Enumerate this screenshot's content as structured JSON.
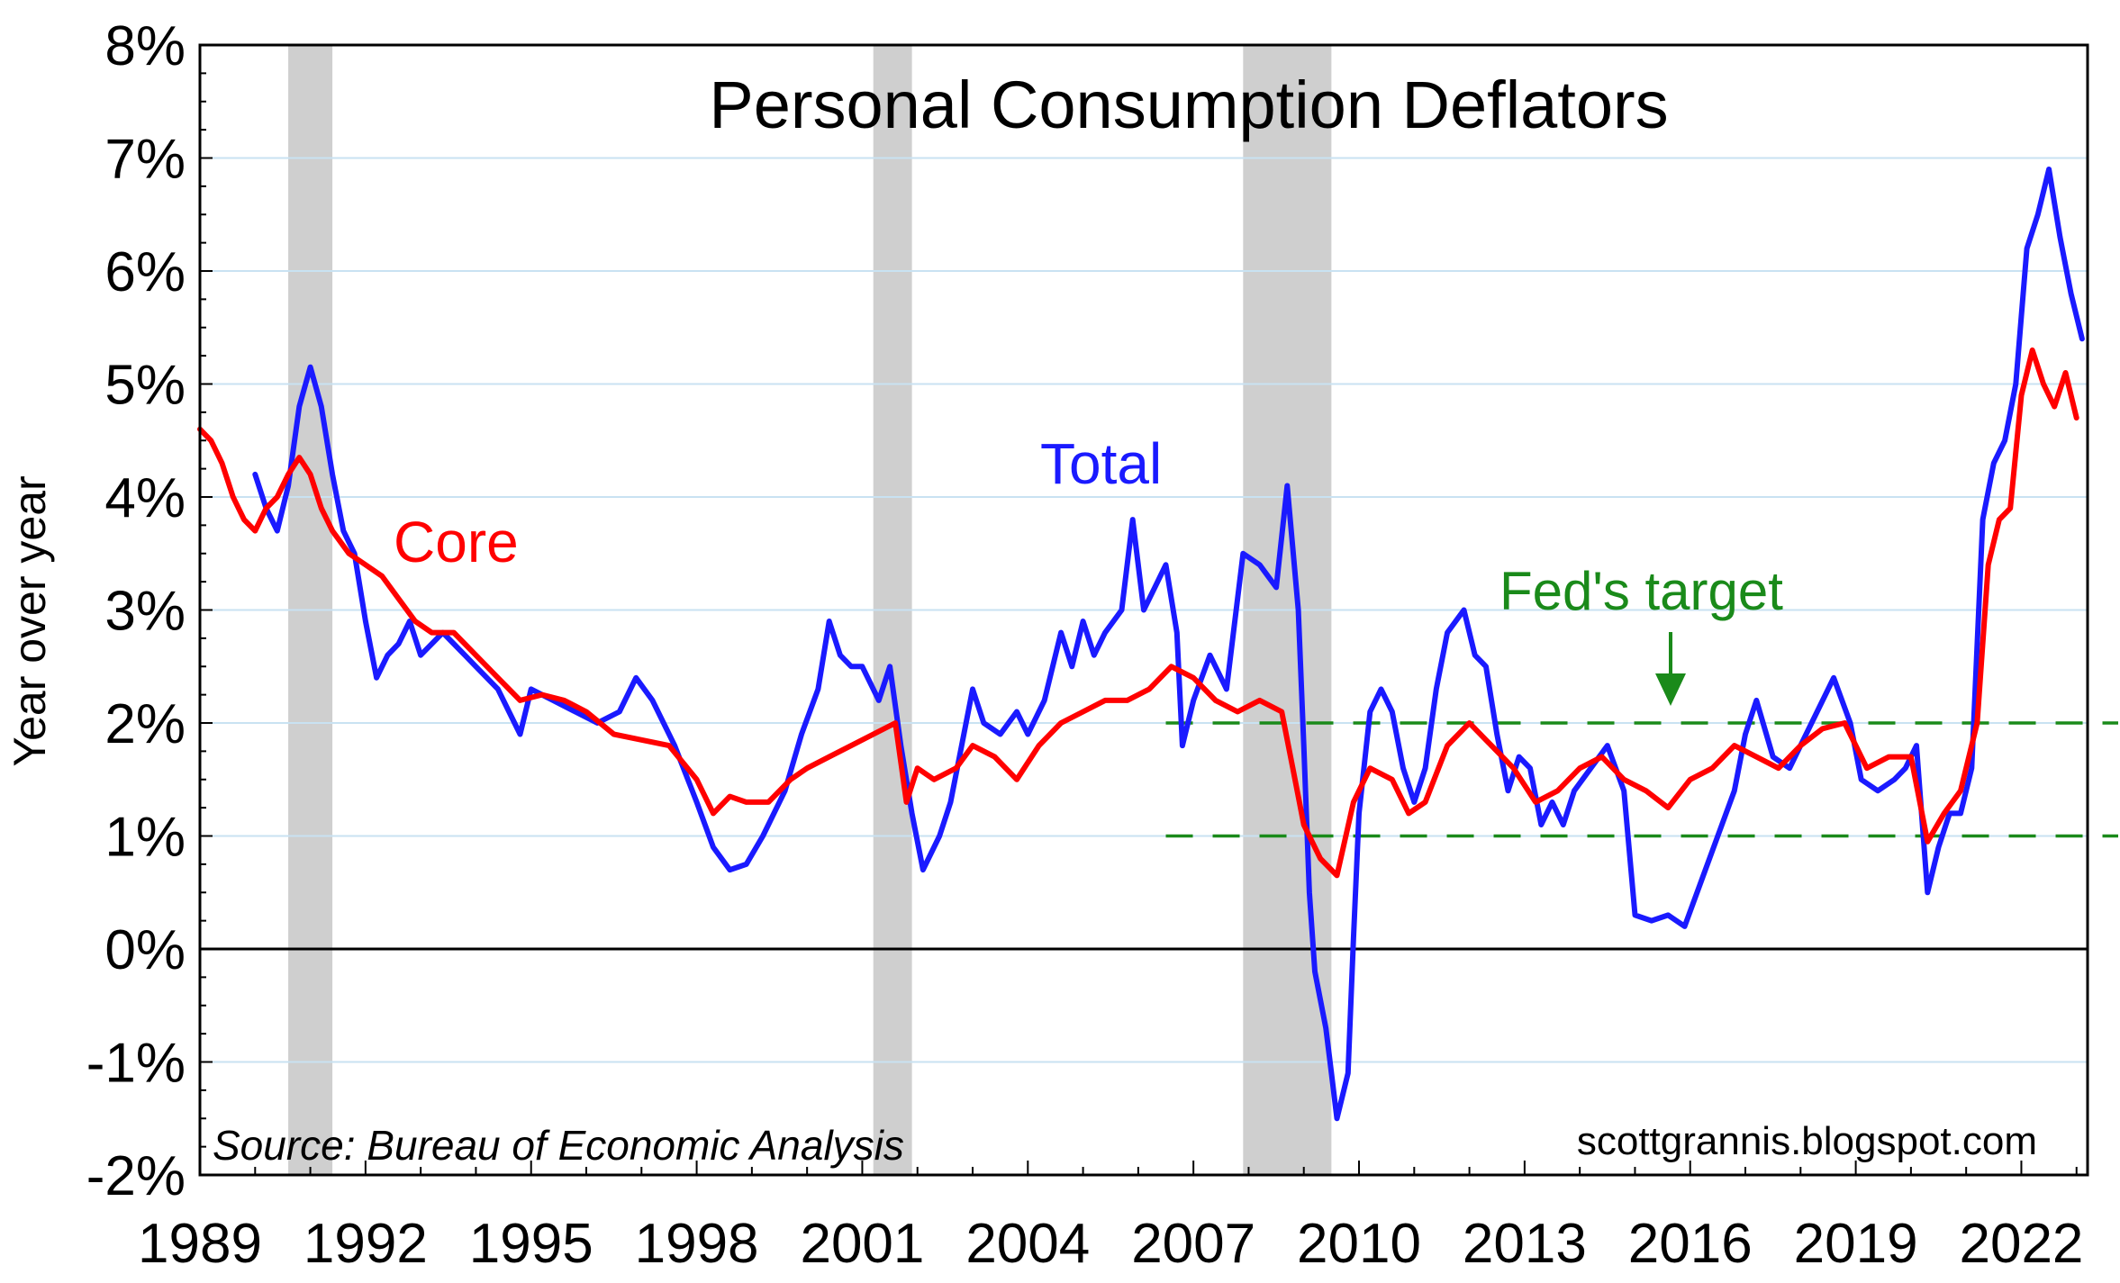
{
  "chart_data": {
    "type": "line",
    "title": "Personal Consumption Deflators",
    "ylabel": "Year over year",
    "xlabel": "",
    "source": "Source:  Bureau of Economic Analysis",
    "watermark": "scottgrannis.blogspot.com",
    "xlim": [
      1989.0,
      2023.2
    ],
    "ylim": [
      -2,
      8
    ],
    "x_ticks": [
      1989,
      1992,
      1995,
      1998,
      2001,
      2004,
      2007,
      2010,
      2013,
      2016,
      2019,
      2022
    ],
    "y_ticks": [
      -2,
      -1,
      0,
      1,
      2,
      3,
      4,
      5,
      6,
      7,
      8
    ],
    "y_tick_labels": [
      "-2%",
      "-1%",
      "0%",
      "1%",
      "2%",
      "3%",
      "4%",
      "5%",
      "6%",
      "7%",
      "8%"
    ],
    "grid": "horizontal",
    "recessions": [
      [
        1990.6,
        1991.4
      ],
      [
        2001.2,
        2001.9
      ],
      [
        2007.9,
        2009.5
      ]
    ],
    "fed_target": {
      "label": "Fed's target",
      "band": [
        1,
        2
      ],
      "x_start": 2006.5
    },
    "series": [
      {
        "name": "Total",
        "color": "#1a1aff",
        "label": "Total",
        "points": [
          [
            1990.0,
            4.2
          ],
          [
            1990.2,
            3.9
          ],
          [
            1990.4,
            3.7
          ],
          [
            1990.6,
            4.1
          ],
          [
            1990.8,
            4.8
          ],
          [
            1991.0,
            5.15
          ],
          [
            1991.2,
            4.8
          ],
          [
            1991.4,
            4.2
          ],
          [
            1991.6,
            3.7
          ],
          [
            1991.8,
            3.5
          ],
          [
            1992.0,
            2.9
          ],
          [
            1992.2,
            2.4
          ],
          [
            1992.4,
            2.6
          ],
          [
            1992.6,
            2.7
          ],
          [
            1992.8,
            2.9
          ],
          [
            1993.0,
            2.6
          ],
          [
            1993.4,
            2.8
          ],
          [
            1993.8,
            2.6
          ],
          [
            1994.0,
            2.5
          ],
          [
            1994.4,
            2.3
          ],
          [
            1994.6,
            2.1
          ],
          [
            1994.8,
            1.9
          ],
          [
            1995.0,
            2.3
          ],
          [
            1995.4,
            2.2
          ],
          [
            1995.8,
            2.1
          ],
          [
            1996.2,
            2.0
          ],
          [
            1996.6,
            2.1
          ],
          [
            1996.9,
            2.4
          ],
          [
            1997.2,
            2.2
          ],
          [
            1997.6,
            1.8
          ],
          [
            1998.0,
            1.3
          ],
          [
            1998.3,
            0.9
          ],
          [
            1998.6,
            0.7
          ],
          [
            1998.9,
            0.75
          ],
          [
            1999.2,
            1.0
          ],
          [
            1999.6,
            1.4
          ],
          [
            1999.9,
            1.9
          ],
          [
            2000.2,
            2.3
          ],
          [
            2000.4,
            2.9
          ],
          [
            2000.6,
            2.6
          ],
          [
            2000.8,
            2.5
          ],
          [
            2001.0,
            2.5
          ],
          [
            2001.3,
            2.2
          ],
          [
            2001.5,
            2.5
          ],
          [
            2001.7,
            1.8
          ],
          [
            2001.9,
            1.2
          ],
          [
            2002.1,
            0.7
          ],
          [
            2002.4,
            1.0
          ],
          [
            2002.6,
            1.3
          ],
          [
            2002.8,
            1.8
          ],
          [
            2003.0,
            2.3
          ],
          [
            2003.2,
            2.0
          ],
          [
            2003.5,
            1.9
          ],
          [
            2003.8,
            2.1
          ],
          [
            2004.0,
            1.9
          ],
          [
            2004.3,
            2.2
          ],
          [
            2004.6,
            2.8
          ],
          [
            2004.8,
            2.5
          ],
          [
            2005.0,
            2.9
          ],
          [
            2005.2,
            2.6
          ],
          [
            2005.4,
            2.8
          ],
          [
            2005.7,
            3.0
          ],
          [
            2005.9,
            3.8
          ],
          [
            2006.1,
            3.0
          ],
          [
            2006.3,
            3.2
          ],
          [
            2006.5,
            3.4
          ],
          [
            2006.7,
            2.8
          ],
          [
            2006.8,
            1.8
          ],
          [
            2007.0,
            2.2
          ],
          [
            2007.3,
            2.6
          ],
          [
            2007.6,
            2.3
          ],
          [
            2007.9,
            3.5
          ],
          [
            2008.2,
            3.4
          ],
          [
            2008.5,
            3.2
          ],
          [
            2008.7,
            4.1
          ],
          [
            2008.9,
            3.0
          ],
          [
            2009.0,
            1.8
          ],
          [
            2009.1,
            0.5
          ],
          [
            2009.2,
            -0.2
          ],
          [
            2009.4,
            -0.7
          ],
          [
            2009.5,
            -1.1
          ],
          [
            2009.6,
            -1.5
          ],
          [
            2009.8,
            -1.1
          ],
          [
            2009.9,
            0.1
          ],
          [
            2010.0,
            1.2
          ],
          [
            2010.2,
            2.1
          ],
          [
            2010.4,
            2.3
          ],
          [
            2010.6,
            2.1
          ],
          [
            2010.8,
            1.6
          ],
          [
            2011.0,
            1.3
          ],
          [
            2011.2,
            1.6
          ],
          [
            2011.4,
            2.3
          ],
          [
            2011.6,
            2.8
          ],
          [
            2011.9,
            3.0
          ],
          [
            2012.1,
            2.6
          ],
          [
            2012.3,
            2.5
          ],
          [
            2012.5,
            1.9
          ],
          [
            2012.7,
            1.4
          ],
          [
            2012.9,
            1.7
          ],
          [
            2013.1,
            1.6
          ],
          [
            2013.3,
            1.1
          ],
          [
            2013.5,
            1.3
          ],
          [
            2013.7,
            1.1
          ],
          [
            2013.9,
            1.4
          ],
          [
            2014.2,
            1.6
          ],
          [
            2014.5,
            1.8
          ],
          [
            2014.8,
            1.4
          ],
          [
            2015.0,
            0.3
          ],
          [
            2015.3,
            0.25
          ],
          [
            2015.6,
            0.3
          ],
          [
            2015.9,
            0.2
          ],
          [
            2016.2,
            0.6
          ],
          [
            2016.5,
            1.0
          ],
          [
            2016.8,
            1.4
          ],
          [
            2017.0,
            1.9
          ],
          [
            2017.2,
            2.2
          ],
          [
            2017.5,
            1.7
          ],
          [
            2017.8,
            1.6
          ],
          [
            2018.0,
            1.8
          ],
          [
            2018.3,
            2.1
          ],
          [
            2018.6,
            2.4
          ],
          [
            2018.9,
            2.0
          ],
          [
            2019.1,
            1.5
          ],
          [
            2019.4,
            1.4
          ],
          [
            2019.7,
            1.5
          ],
          [
            2019.9,
            1.6
          ],
          [
            2020.1,
            1.8
          ],
          [
            2020.3,
            0.5
          ],
          [
            2020.5,
            0.9
          ],
          [
            2020.7,
            1.2
          ],
          [
            2020.9,
            1.2
          ],
          [
            2021.1,
            1.6
          ],
          [
            2021.3,
            3.8
          ],
          [
            2021.5,
            4.3
          ],
          [
            2021.7,
            4.5
          ],
          [
            2021.9,
            5.0
          ],
          [
            2022.1,
            6.2
          ],
          [
            2022.3,
            6.5
          ],
          [
            2022.5,
            6.9
          ],
          [
            2022.7,
            6.3
          ],
          [
            2022.9,
            5.8
          ],
          [
            2023.1,
            5.4
          ]
        ]
      },
      {
        "name": "Core",
        "color": "#ff0000",
        "label": "Core",
        "points": [
          [
            1989.0,
            4.6
          ],
          [
            1989.2,
            4.5
          ],
          [
            1989.4,
            4.3
          ],
          [
            1989.6,
            4.0
          ],
          [
            1989.8,
            3.8
          ],
          [
            1990.0,
            3.7
          ],
          [
            1990.2,
            3.9
          ],
          [
            1990.4,
            4.0
          ],
          [
            1990.6,
            4.2
          ],
          [
            1990.8,
            4.35
          ],
          [
            1991.0,
            4.2
          ],
          [
            1991.2,
            3.9
          ],
          [
            1991.4,
            3.7
          ],
          [
            1991.7,
            3.5
          ],
          [
            1992.0,
            3.4
          ],
          [
            1992.3,
            3.3
          ],
          [
            1992.6,
            3.1
          ],
          [
            1992.9,
            2.9
          ],
          [
            1993.2,
            2.8
          ],
          [
            1993.6,
            2.8
          ],
          [
            1994.0,
            2.6
          ],
          [
            1994.4,
            2.4
          ],
          [
            1994.8,
            2.2
          ],
          [
            1995.2,
            2.25
          ],
          [
            1995.6,
            2.2
          ],
          [
            1996.0,
            2.1
          ],
          [
            1996.5,
            1.9
          ],
          [
            1997.0,
            1.85
          ],
          [
            1997.5,
            1.8
          ],
          [
            1998.0,
            1.5
          ],
          [
            1998.3,
            1.2
          ],
          [
            1998.6,
            1.35
          ],
          [
            1998.9,
            1.3
          ],
          [
            1999.3,
            1.3
          ],
          [
            1999.7,
            1.5
          ],
          [
            2000.0,
            1.6
          ],
          [
            2000.4,
            1.7
          ],
          [
            2000.8,
            1.8
          ],
          [
            2001.2,
            1.9
          ],
          [
            2001.6,
            2.0
          ],
          [
            2001.8,
            1.3
          ],
          [
            2002.0,
            1.6
          ],
          [
            2002.3,
            1.5
          ],
          [
            2002.7,
            1.6
          ],
          [
            2003.0,
            1.8
          ],
          [
            2003.4,
            1.7
          ],
          [
            2003.8,
            1.5
          ],
          [
            2004.2,
            1.8
          ],
          [
            2004.6,
            2.0
          ],
          [
            2005.0,
            2.1
          ],
          [
            2005.4,
            2.2
          ],
          [
            2005.8,
            2.2
          ],
          [
            2006.2,
            2.3
          ],
          [
            2006.6,
            2.5
          ],
          [
            2007.0,
            2.4
          ],
          [
            2007.4,
            2.2
          ],
          [
            2007.8,
            2.1
          ],
          [
            2008.2,
            2.2
          ],
          [
            2008.6,
            2.1
          ],
          [
            2008.8,
            1.6
          ],
          [
            2009.0,
            1.1
          ],
          [
            2009.3,
            0.8
          ],
          [
            2009.6,
            0.65
          ],
          [
            2009.9,
            1.3
          ],
          [
            2010.2,
            1.6
          ],
          [
            2010.6,
            1.5
          ],
          [
            2010.9,
            1.2
          ],
          [
            2011.2,
            1.3
          ],
          [
            2011.6,
            1.8
          ],
          [
            2012.0,
            2.0
          ],
          [
            2012.4,
            1.8
          ],
          [
            2012.8,
            1.6
          ],
          [
            2013.2,
            1.3
          ],
          [
            2013.6,
            1.4
          ],
          [
            2014.0,
            1.6
          ],
          [
            2014.4,
            1.7
          ],
          [
            2014.8,
            1.5
          ],
          [
            2015.2,
            1.4
          ],
          [
            2015.6,
            1.25
          ],
          [
            2016.0,
            1.5
          ],
          [
            2016.4,
            1.6
          ],
          [
            2016.8,
            1.8
          ],
          [
            2017.2,
            1.7
          ],
          [
            2017.6,
            1.6
          ],
          [
            2018.0,
            1.8
          ],
          [
            2018.4,
            1.95
          ],
          [
            2018.8,
            2.0
          ],
          [
            2019.2,
            1.6
          ],
          [
            2019.6,
            1.7
          ],
          [
            2020.0,
            1.7
          ],
          [
            2020.3,
            0.95
          ],
          [
            2020.6,
            1.2
          ],
          [
            2020.9,
            1.4
          ],
          [
            2021.2,
            2.0
          ],
          [
            2021.4,
            3.4
          ],
          [
            2021.6,
            3.8
          ],
          [
            2021.8,
            3.9
          ],
          [
            2022.0,
            4.9
          ],
          [
            2022.2,
            5.3
          ],
          [
            2022.4,
            5.0
          ],
          [
            2022.6,
            4.8
          ],
          [
            2022.8,
            5.1
          ],
          [
            2023.0,
            4.7
          ]
        ]
      }
    ]
  }
}
